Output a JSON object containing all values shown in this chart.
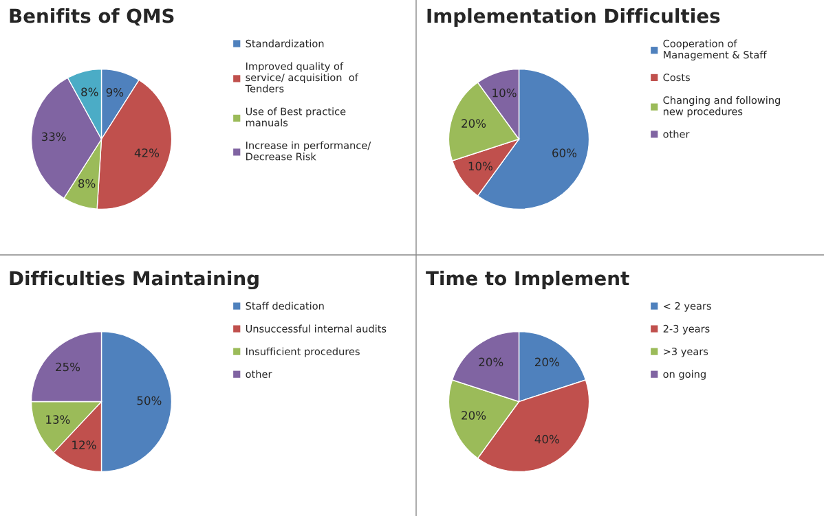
{
  "chart_data": [
    {
      "type": "pie",
      "title": "Benifits of QMS",
      "categories": [
        "Standardization",
        "Improved quality of\nservice/ acquisition  of\nTenders",
        "Use of Best practice\nmanuals",
        "Increase in performance/\nDecrease Risk",
        null
      ],
      "values": [
        9,
        42,
        8,
        33,
        8
      ],
      "value_labels": [
        "9%",
        "42%",
        "8%",
        "33%",
        "8%"
      ],
      "colors": [
        "#4f81bd",
        "#c0504d",
        "#9bbb59",
        "#8064a2",
        "#4bacc6"
      ],
      "legend": "right"
    },
    {
      "type": "pie",
      "title": "Implementation Difficulties",
      "categories": [
        "Cooperation of\nManagement & Staff",
        "Costs",
        "Changing and following\nnew procedures",
        "other"
      ],
      "values": [
        60,
        10,
        20,
        10
      ],
      "value_labels": [
        "60%",
        "10%",
        "20%",
        "10%"
      ],
      "colors": [
        "#4f81bd",
        "#c0504d",
        "#9bbb59",
        "#8064a2"
      ],
      "legend": "right"
    },
    {
      "type": "pie",
      "title": "Difficulties Maintaining",
      "categories": [
        "Staff dedication",
        "Unsuccessful internal audits",
        "Insufficient procedures",
        "other"
      ],
      "values": [
        50,
        12,
        13,
        25
      ],
      "value_labels": [
        "50%",
        "12%",
        "13%",
        "25%"
      ],
      "colors": [
        "#4f81bd",
        "#c0504d",
        "#9bbb59",
        "#8064a2"
      ],
      "legend": "right"
    },
    {
      "type": "pie",
      "title": "Time to Implement",
      "categories": [
        "< 2 years",
        "2-3 years",
        ">3 years",
        "on going"
      ],
      "values": [
        20,
        40,
        20,
        20
      ],
      "value_labels": [
        "20%",
        "40%",
        "20%",
        "20%"
      ],
      "colors": [
        "#4f81bd",
        "#c0504d",
        "#9bbb59",
        "#8064a2"
      ],
      "legend": "right"
    }
  ]
}
